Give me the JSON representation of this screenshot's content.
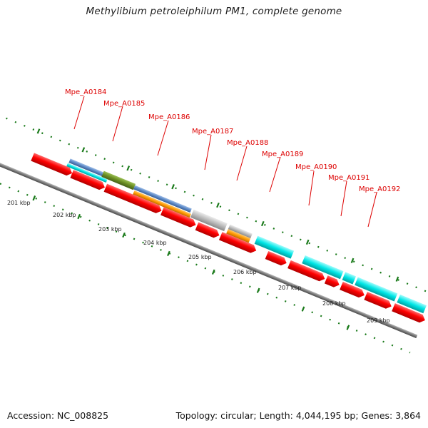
{
  "title": "Methylibium petroleiphilum PM1, complete genome",
  "accession_label": "Accession: NC_008825",
  "summary_label": "Topology: circular; Length: 4,044,195 bp; Genes: 3,864",
  "colors": {
    "backbone": "#808080",
    "cds": "#ff0000",
    "gene_label": "#dd0000",
    "tick": "#1a7a1a",
    "cyan": "#00e6e6",
    "steelblue": "#5b88c6",
    "olive": "#6b8e23",
    "orange": "#ff9a00",
    "grey": "#bcbcbc",
    "blue": "#0000ff"
  },
  "kbp_ticks": [
    "201 kbp",
    "202 kbp",
    "203 kbp",
    "204 kbp",
    "205 kbp",
    "206 kbp",
    "207 kbp",
    "208 kbp",
    "209 kbp"
  ],
  "gene_labels": [
    "Mpe_A0184",
    "Mpe_A0185",
    "Mpe_A0186",
    "Mpe_A0187",
    "Mpe_A0188",
    "Mpe_A0189",
    "Mpe_A0190",
    "Mpe_A0191",
    "Mpe_A0192"
  ]
}
